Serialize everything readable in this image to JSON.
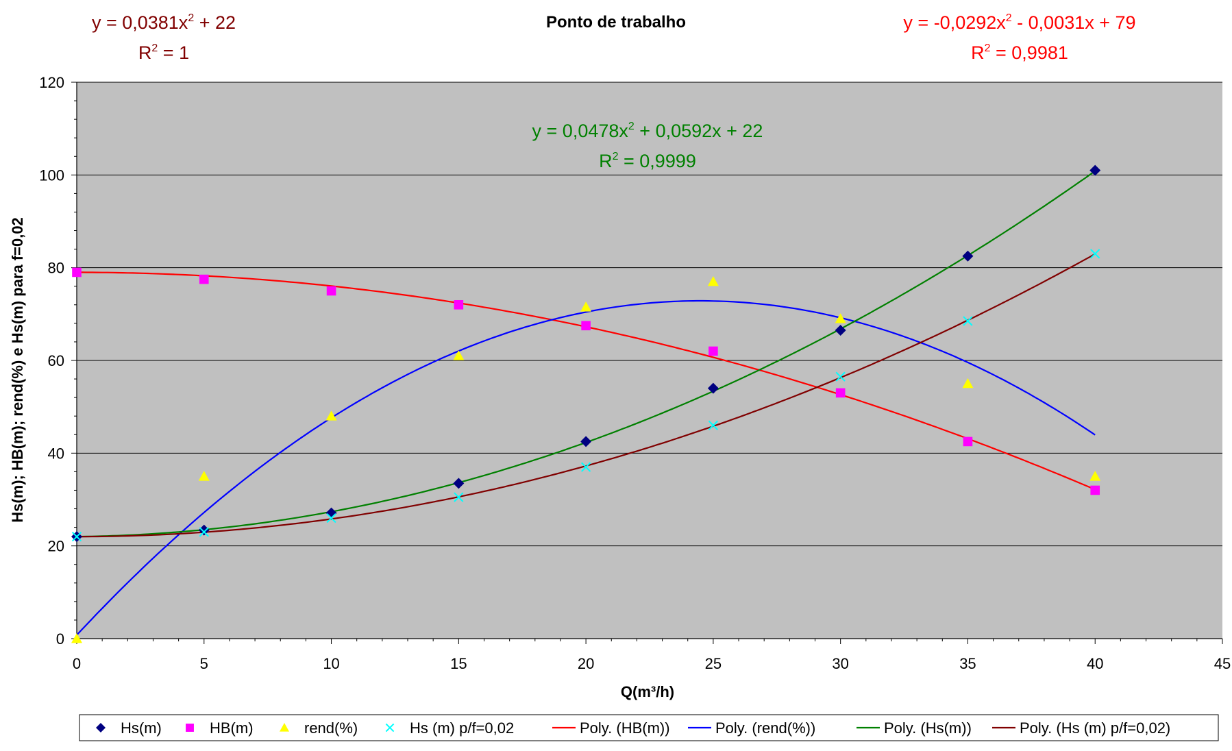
{
  "chart_data": {
    "type": "scatter",
    "title": "Ponto de trabalho",
    "xlabel": "Q(m³/h)",
    "ylabel": "Hs(m); HB(m); rend(%) e Hs(m) para f=0,02",
    "xlim": [
      0,
      45
    ],
    "ylim": [
      0,
      120
    ],
    "x_ticks": [
      "0",
      "5",
      "10",
      "15",
      "20",
      "25",
      "30",
      "35",
      "40",
      "45"
    ],
    "y_ticks": [
      "0",
      "20",
      "40",
      "60",
      "80",
      "100",
      "120"
    ],
    "grid": "horizontal major",
    "legend_position": "bottom",
    "colors": {
      "plot_background": "#c0c0c0",
      "hs": "#000080",
      "hb": "#ff00ff",
      "rend": "#ffff00",
      "hs_f": "#00ffff",
      "poly_hb": "#ff0000",
      "poly_rend": "#0000ff",
      "poly_hs": "#008000",
      "poly_hs_f": "#800000"
    },
    "series": [
      {
        "name": "Hs(m)",
        "marker": "diamond",
        "x": [
          0,
          5,
          10,
          15,
          20,
          25,
          30,
          35,
          40
        ],
        "y": [
          22,
          23.4,
          27.1,
          33.5,
          42.5,
          54,
          66.5,
          82.5,
          101
        ]
      },
      {
        "name": "HB(m)",
        "marker": "square",
        "x": [
          0,
          5,
          10,
          15,
          20,
          25,
          30,
          35,
          40
        ],
        "y": [
          79,
          77.5,
          75,
          72,
          67.5,
          62,
          53,
          42.5,
          32
        ]
      },
      {
        "name": "rend(%)",
        "marker": "triangle",
        "x": [
          0,
          5,
          10,
          15,
          20,
          25,
          30,
          35,
          40
        ],
        "y": [
          0,
          35,
          48,
          61,
          71.5,
          77,
          69,
          55,
          35
        ]
      },
      {
        "name": "Hs (m) p/f=0,02",
        "marker": "x",
        "x": [
          0,
          5,
          10,
          15,
          20,
          25,
          30,
          35,
          40
        ],
        "y": [
          22,
          23,
          26,
          30.5,
          37,
          46,
          56.5,
          68.5,
          83
        ]
      }
    ],
    "trendlines": [
      {
        "name": "Poly. (HB(m))",
        "of": "HB(m)",
        "coeffs": [
          -0.0292,
          -0.0031,
          79
        ],
        "x_range": [
          0,
          40
        ]
      },
      {
        "name": "Poly. (rend(%))",
        "of": "rend(%)",
        "coeffs": [
          -0.1202,
          5.887,
          0.77
        ],
        "x_range": [
          0,
          40
        ]
      },
      {
        "name": "Poly. (Hs(m))",
        "of": "Hs(m)",
        "coeffs": [
          0.0478,
          0.0592,
          22
        ],
        "x_range": [
          0,
          40
        ]
      },
      {
        "name": "Poly. (Hs (m) p/f=0,02)",
        "of": "Hs (m) p/f=0,02",
        "coeffs": [
          0.0381,
          0,
          22
        ],
        "x_range": [
          0,
          40
        ]
      }
    ],
    "annotations": [
      {
        "id": "hs_f",
        "line1": "y = 0,0381x",
        "sup": "2",
        "line1_tail": " + 22",
        "line2": "R",
        "line2_sup": "2",
        "line2_tail": " = 1",
        "color": "#800000"
      },
      {
        "id": "hb",
        "line1": "y = -0,0292x",
        "sup": "2",
        "line1_tail": " - 0,0031x + 79",
        "line2": "R",
        "line2_sup": "2",
        "line2_tail": " = 0,9981",
        "color": "#ff0000"
      },
      {
        "id": "hs",
        "line1": "y = 0,0478x",
        "sup": "2",
        "line1_tail": " + 0,0592x + 22",
        "line2": "R",
        "line2_sup": "2",
        "line2_tail": " = 0,9999",
        "color": "#008000"
      }
    ]
  }
}
